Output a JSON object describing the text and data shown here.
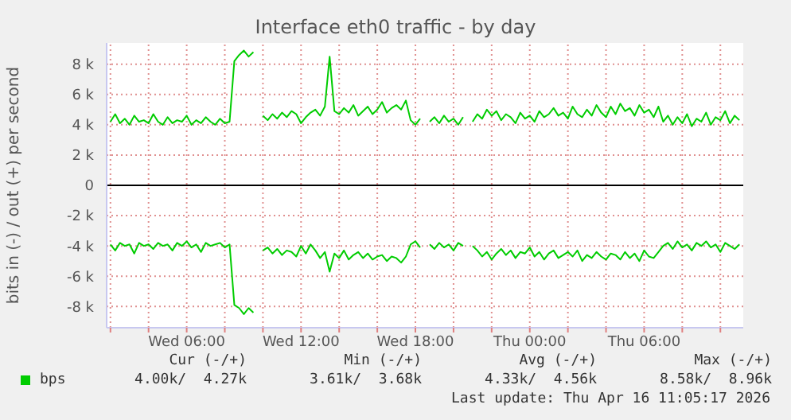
{
  "chart_data": {
    "type": "line",
    "title": "Interface eth0 traffic - by day",
    "ylabel": "bits in (-) / out (+) per second",
    "x": [
      "2026-04-15T02:00",
      "2026-04-15T02:15",
      "2026-04-15T02:30",
      "2026-04-15T02:45",
      "2026-04-15T03:00",
      "2026-04-15T03:15",
      "2026-04-15T03:30",
      "2026-04-15T03:45",
      "2026-04-15T04:00",
      "2026-04-15T04:15",
      "2026-04-15T04:30",
      "2026-04-15T04:45",
      "2026-04-15T05:00",
      "2026-04-15T05:15",
      "2026-04-15T05:30",
      "2026-04-15T05:45",
      "2026-04-15T06:00",
      "2026-04-15T06:15",
      "2026-04-15T06:30",
      "2026-04-15T06:45",
      "2026-04-15T07:00",
      "2026-04-15T07:15",
      "2026-04-15T07:30",
      "2026-04-15T07:45",
      "2026-04-15T08:00",
      "2026-04-15T08:15",
      "2026-04-15T08:30",
      "2026-04-15T08:45",
      "2026-04-15T09:00",
      "2026-04-15T09:15",
      "2026-04-15T09:30",
      "2026-04-15T09:45",
      "2026-04-15T10:00",
      "2026-04-15T10:15",
      "2026-04-15T10:30",
      "2026-04-15T10:45",
      "2026-04-15T11:00",
      "2026-04-15T11:15",
      "2026-04-15T11:30",
      "2026-04-15T11:45",
      "2026-04-15T12:00",
      "2026-04-15T12:15",
      "2026-04-15T12:30",
      "2026-04-15T12:45",
      "2026-04-15T13:00",
      "2026-04-15T13:15",
      "2026-04-15T13:30",
      "2026-04-15T13:45",
      "2026-04-15T14:00",
      "2026-04-15T14:15",
      "2026-04-15T14:30",
      "2026-04-15T14:45",
      "2026-04-15T15:00",
      "2026-04-15T15:15",
      "2026-04-15T15:30",
      "2026-04-15T15:45",
      "2026-04-15T16:00",
      "2026-04-15T16:15",
      "2026-04-15T16:30",
      "2026-04-15T16:45",
      "2026-04-15T17:00",
      "2026-04-15T17:15",
      "2026-04-15T17:30",
      "2026-04-15T17:45",
      "2026-04-15T18:00",
      "2026-04-15T18:15",
      "2026-04-15T18:30",
      "2026-04-15T18:45",
      "2026-04-15T19:00",
      "2026-04-15T19:15",
      "2026-04-15T19:30",
      "2026-04-15T19:45",
      "2026-04-15T20:00",
      "2026-04-15T20:15",
      "2026-04-15T20:30",
      "2026-04-15T20:45",
      "2026-04-15T21:00",
      "2026-04-15T21:15",
      "2026-04-15T21:30",
      "2026-04-15T21:45",
      "2026-04-15T22:00",
      "2026-04-15T22:15",
      "2026-04-15T22:30",
      "2026-04-15T22:45",
      "2026-04-15T23:00",
      "2026-04-15T23:15",
      "2026-04-15T23:30",
      "2026-04-15T23:45",
      "2026-04-16T00:00",
      "2026-04-16T00:15",
      "2026-04-16T00:30",
      "2026-04-16T00:45",
      "2026-04-16T01:00",
      "2026-04-16T01:15",
      "2026-04-16T01:30",
      "2026-04-16T01:45",
      "2026-04-16T02:00",
      "2026-04-16T02:15",
      "2026-04-16T02:30",
      "2026-04-16T02:45",
      "2026-04-16T03:00",
      "2026-04-16T03:15",
      "2026-04-16T03:30",
      "2026-04-16T03:45",
      "2026-04-16T04:00",
      "2026-04-16T04:15",
      "2026-04-16T04:30",
      "2026-04-16T04:45",
      "2026-04-16T05:00",
      "2026-04-16T05:15",
      "2026-04-16T05:30",
      "2026-04-16T05:45",
      "2026-04-16T06:00",
      "2026-04-16T06:15",
      "2026-04-16T06:30",
      "2026-04-16T06:45",
      "2026-04-16T07:00",
      "2026-04-16T07:15",
      "2026-04-16T07:30",
      "2026-04-16T07:45",
      "2026-04-16T08:00",
      "2026-04-16T08:15",
      "2026-04-16T08:30",
      "2026-04-16T08:45",
      "2026-04-16T09:00",
      "2026-04-16T09:15",
      "2026-04-16T09:30",
      "2026-04-16T09:45",
      "2026-04-16T10:00",
      "2026-04-16T10:15",
      "2026-04-16T10:30",
      "2026-04-16T10:45",
      "2026-04-16T11:00"
    ],
    "series": [
      {
        "name": "bps",
        "color": "#00cc00",
        "values": [
          4200,
          4700,
          4100,
          4400,
          4000,
          4600,
          4200,
          4300,
          4100,
          4700,
          4200,
          4000,
          4500,
          4100,
          4300,
          4200,
          4600,
          4000,
          4300,
          4100,
          4500,
          4200,
          4000,
          4400,
          4100,
          4200,
          8200,
          8600,
          8900,
          8500,
          8800,
          null,
          4600,
          4300,
          4700,
          4400,
          4800,
          4500,
          4900,
          4700,
          4100,
          4500,
          4800,
          5000,
          4600,
          5200,
          8500,
          4900,
          4700,
          5100,
          4800,
          5300,
          4600,
          4900,
          5200,
          4700,
          5000,
          5500,
          4800,
          5100,
          5300,
          5000,
          5600,
          4300,
          4000,
          4400,
          null,
          4200,
          4500,
          4100,
          4600,
          4200,
          4400,
          4000,
          4500,
          null,
          4200,
          4700,
          4400,
          5000,
          4600,
          4900,
          4300,
          4700,
          4500,
          4100,
          4800,
          4400,
          4600,
          4200,
          4900,
          4500,
          4700,
          5100,
          4600,
          4800,
          4400,
          5200,
          4700,
          4500,
          5000,
          4600,
          5300,
          4800,
          4500,
          5200,
          4700,
          5400,
          4900,
          5100,
          4600,
          5300,
          4800,
          5000,
          4500,
          5200,
          4200,
          4600,
          4000,
          4500,
          4100,
          4700,
          3900,
          4400,
          4200,
          4800,
          4000,
          4500,
          4300,
          4900,
          4100,
          4600,
          4300
        ]
      },
      {
        "color": "#00cc00",
        "values": [
          -3900,
          -4300,
          -3800,
          -4000,
          -3900,
          -4500,
          -3800,
          -4000,
          -3900,
          -4200,
          -3800,
          -4000,
          -3900,
          -4300,
          -3800,
          -4000,
          -3700,
          -4100,
          -3900,
          -4400,
          -3800,
          -4000,
          -3900,
          -3800,
          -4100,
          -3900,
          -7900,
          -8100,
          -8500,
          -8100,
          -8400,
          null,
          -4300,
          -4100,
          -4500,
          -4200,
          -4600,
          -4300,
          -4400,
          -4700,
          -4000,
          -4500,
          -3900,
          -4300,
          -4800,
          -4400,
          -5700,
          -4500,
          -4800,
          -4300,
          -4900,
          -4600,
          -4400,
          -4800,
          -4500,
          -4900,
          -4700,
          -4600,
          -5000,
          -4700,
          -4800,
          -5100,
          -4700,
          -3900,
          -3700,
          -4100,
          null,
          -3900,
          -4200,
          -3800,
          -4100,
          -3900,
          -4300,
          -3800,
          -4000,
          null,
          -4000,
          -4300,
          -4700,
          -4400,
          -4900,
          -4500,
          -4200,
          -4600,
          -4300,
          -4800,
          -4400,
          -4500,
          -4100,
          -4700,
          -4400,
          -4900,
          -4500,
          -4300,
          -4800,
          -4600,
          -4400,
          -4700,
          -4300,
          -5000,
          -4600,
          -4800,
          -4400,
          -4700,
          -4900,
          -4500,
          -4600,
          -4900,
          -4400,
          -4800,
          -4500,
          -5000,
          -4300,
          -4700,
          -4800,
          -4400,
          -4000,
          -3800,
          -4200,
          -3700,
          -4100,
          -3900,
          -4300,
          -3800,
          -4000,
          -3700,
          -4100,
          -3900,
          -4400,
          -3800,
          -4000,
          -4200,
          -3900
        ]
      }
    ],
    "xlim": [
      "2026-04-15T01:48",
      "2026-04-16T11:12"
    ],
    "xticks": [
      {
        "value": "2026-04-15T02:00",
        "label": null
      },
      {
        "value": "2026-04-15T04:00",
        "label": null
      },
      {
        "value": "2026-04-15T06:00",
        "label": "Wed 06:00"
      },
      {
        "value": "2026-04-15T08:00",
        "label": null
      },
      {
        "value": "2026-04-15T10:00",
        "label": null
      },
      {
        "value": "2026-04-15T12:00",
        "label": "Wed 12:00"
      },
      {
        "value": "2026-04-15T14:00",
        "label": null
      },
      {
        "value": "2026-04-15T16:00",
        "label": null
      },
      {
        "value": "2026-04-15T18:00",
        "label": "Wed 18:00"
      },
      {
        "value": "2026-04-15T20:00",
        "label": null
      },
      {
        "value": "2026-04-15T22:00",
        "label": null
      },
      {
        "value": "2026-04-16T00:00",
        "label": "Thu 00:00"
      },
      {
        "value": "2026-04-16T02:00",
        "label": null
      },
      {
        "value": "2026-04-16T04:00",
        "label": null
      },
      {
        "value": "2026-04-16T06:00",
        "label": "Thu 06:00"
      },
      {
        "value": "2026-04-16T08:00",
        "label": null
      },
      {
        "value": "2026-04-16T10:00",
        "label": null
      }
    ],
    "ylim": [
      -9400,
      9400
    ],
    "yticks": [
      {
        "value": -8000,
        "label": "-8 k"
      },
      {
        "value": -6000,
        "label": "-6 k"
      },
      {
        "value": -4000,
        "label": "-4 k"
      },
      {
        "value": -2000,
        "label": "-2 k"
      },
      0,
      {
        "value": 2000,
        "label": "2 k"
      },
      {
        "value": 4000,
        "label": "4 k"
      },
      {
        "value": 6000,
        "label": "6 k"
      },
      {
        "value": 8000,
        "label": "8 k"
      }
    ],
    "grid": true,
    "legend": "bottom left",
    "marker": "none",
    "line_style": "solid",
    "ref_lines": [
      {
        "axis": "y",
        "value": 0,
        "color": "#000000"
      }
    ],
    "annotations": [
      "Cur (-/+)",
      "Min (-/+)",
      "Avg (-/+)",
      "Max (-/+)",
      "4.00k/  4.27k",
      "3.61k/  3.68k",
      "4.33k/  4.56k",
      "8.58k/  8.96k",
      "Last update: Thu Apr 16 11:05:17 2026"
    ]
  }
}
